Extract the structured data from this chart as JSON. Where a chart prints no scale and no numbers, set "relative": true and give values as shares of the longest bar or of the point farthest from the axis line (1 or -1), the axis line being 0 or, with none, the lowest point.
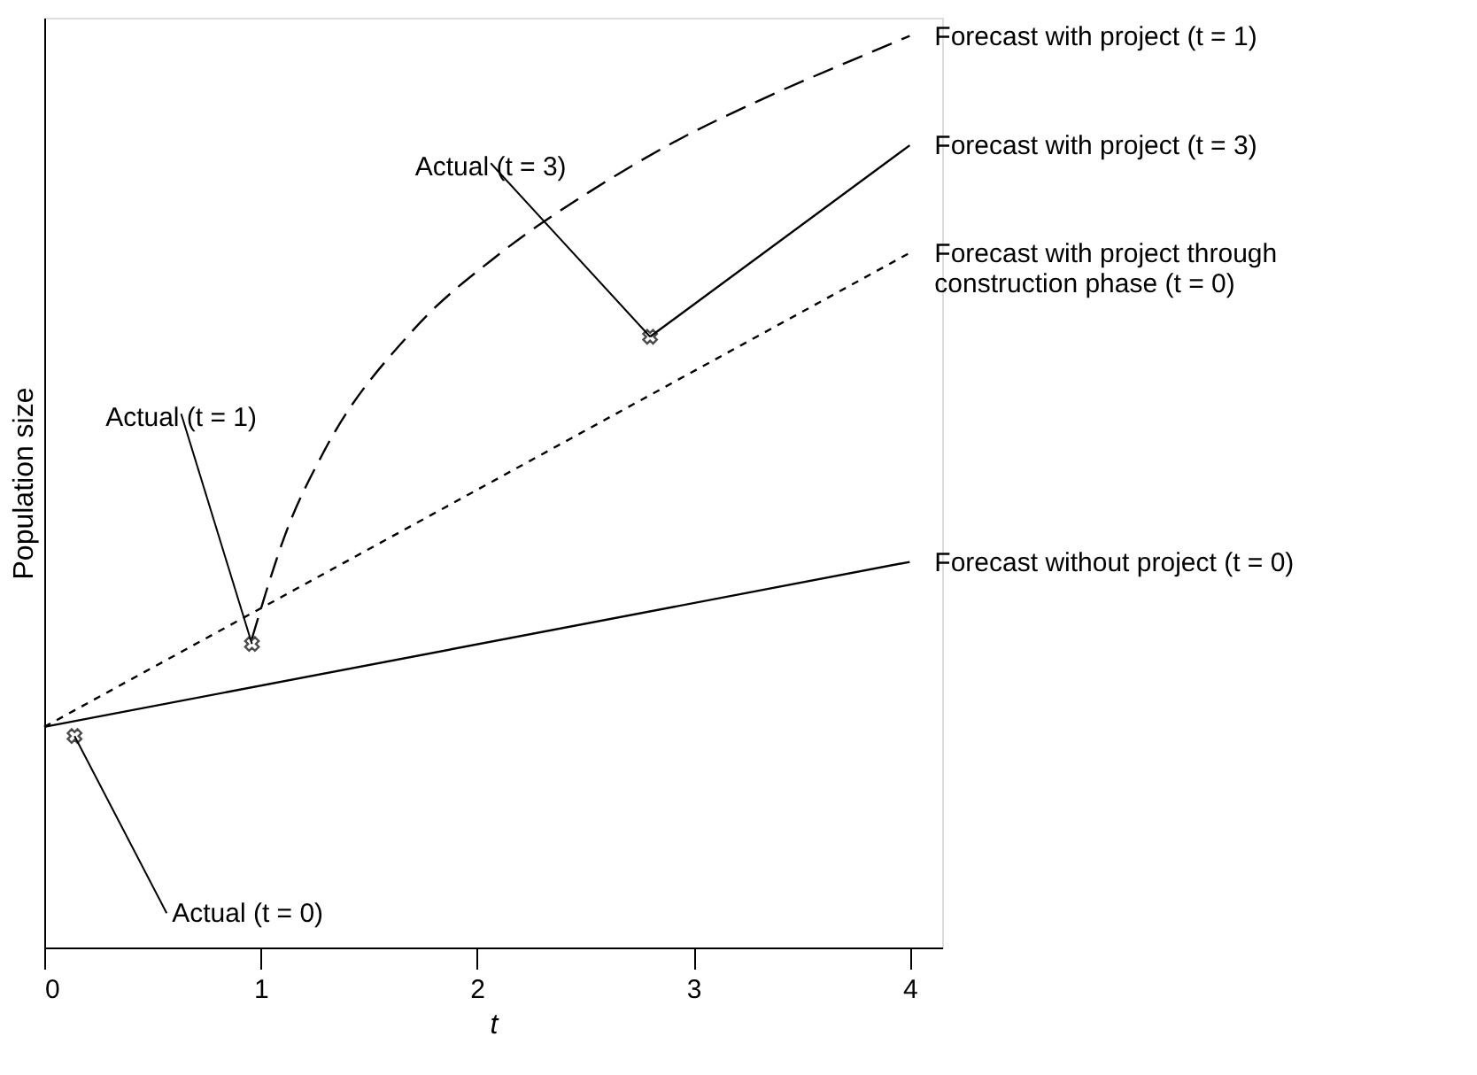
{
  "chart_data": {
    "type": "line",
    "relative": true,
    "xlabel": "t",
    "ylabel": "Population size",
    "xlim": [
      0,
      4.15
    ],
    "xticks": [
      0,
      1,
      2,
      3,
      4
    ],
    "tick_labels": "x",
    "grid": false,
    "series": [
      {
        "name": "Forecast with project (t = 1)",
        "color": "#000000",
        "line_style": "dashed",
        "x": [
          0.96,
          1.12,
          1.29,
          1.7,
          2.11,
          2.52,
          2.93,
          3.34,
          3.75,
          4.0
        ],
        "values": [
          0.339,
          0.457,
          0.543,
          0.676,
          0.762,
          0.829,
          0.886,
          0.933,
          0.975,
          1.0
        ]
      },
      {
        "name": "Forecast with project (t = 3)",
        "color": "#000000",
        "line_style": "solid",
        "x": [
          2.8,
          4.0
        ],
        "values": [
          0.67,
          0.88
        ]
      },
      {
        "name": "Forecast with project through construction phase (t = 0)",
        "color": "#000000",
        "line_style": "dotted",
        "x": [
          0.0,
          4.0
        ],
        "values": [
          0.242,
          0.762
        ]
      },
      {
        "name": "Forecast without project (t = 0)",
        "color": "#000000",
        "line_style": "solid",
        "x": [
          0.0,
          4.0
        ],
        "values": [
          0.242,
          0.423
        ]
      },
      {
        "type": "scatter",
        "marker": "cross",
        "color": "#000000",
        "x": [
          0.14,
          0.96,
          2.8
        ],
        "values": [
          0.232,
          0.333,
          0.67
        ]
      }
    ],
    "annotations": [
      {
        "text": "Actual (t = 0)",
        "x": 0.14,
        "y": 0.232
      },
      {
        "text": "Actual (t = 1)",
        "x": 0.96,
        "y": 0.333
      },
      {
        "text": "Actual (t = 3)",
        "x": 2.8,
        "y": 0.67
      }
    ]
  }
}
